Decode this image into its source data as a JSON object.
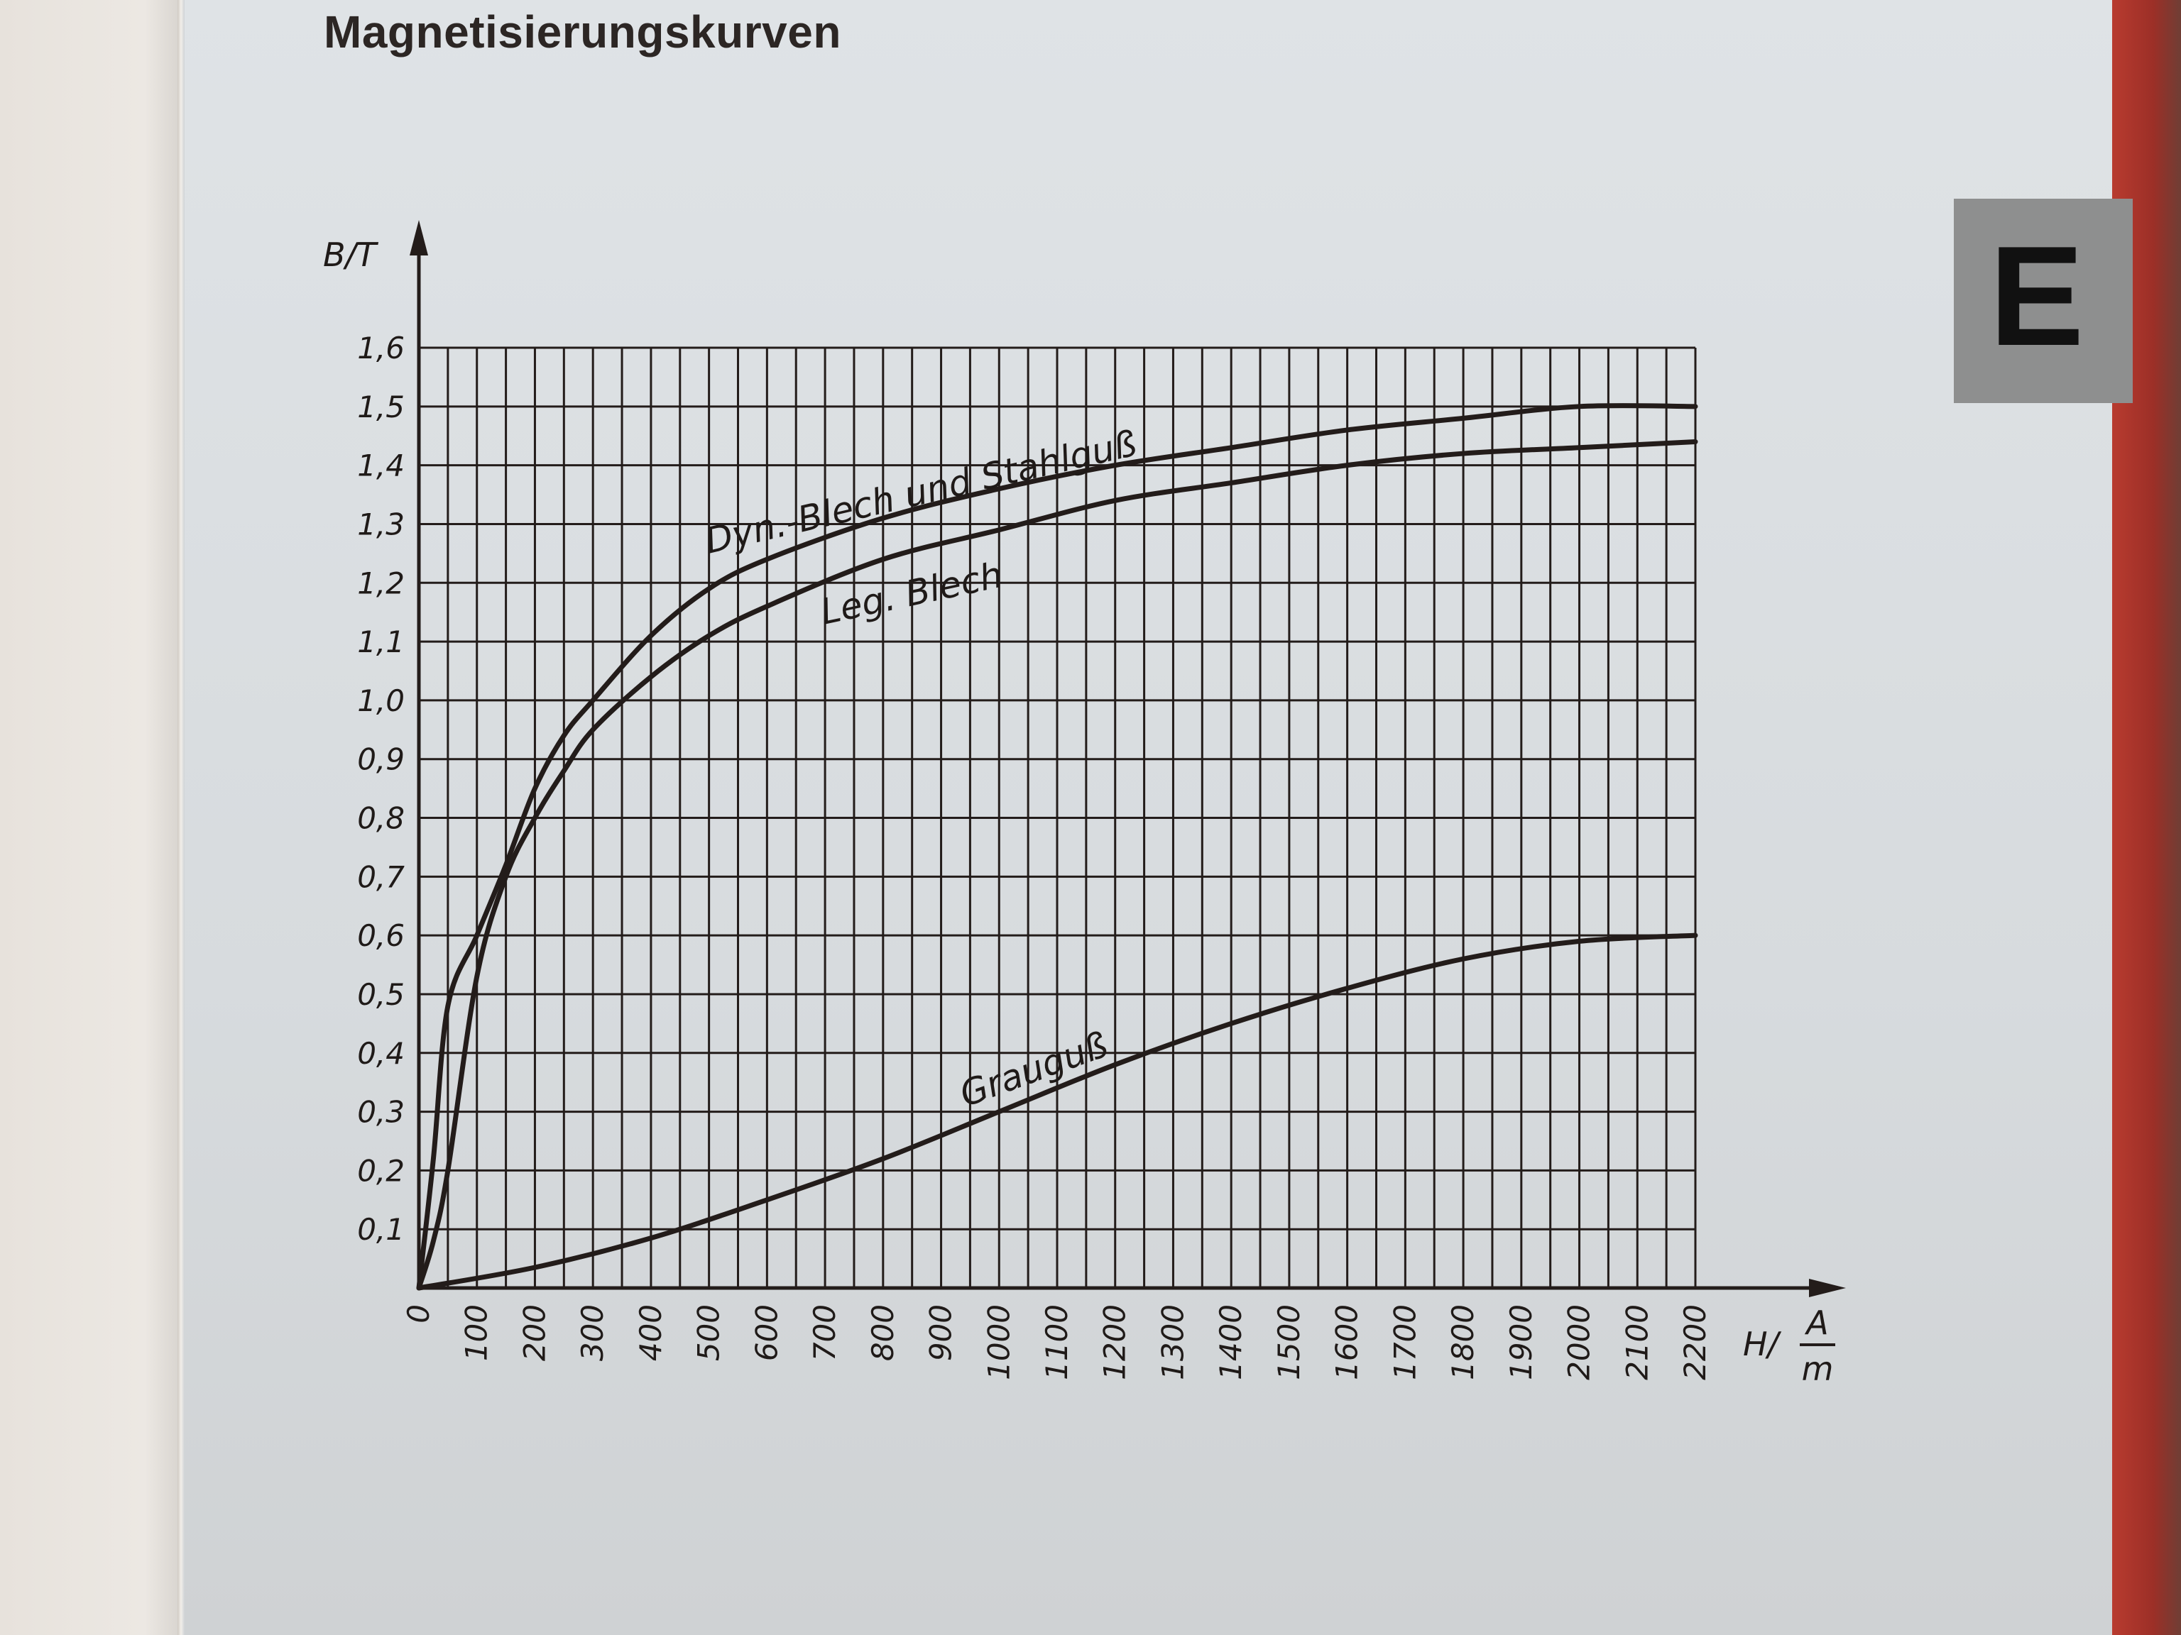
{
  "header": {
    "title": "Magnetisierungskurven",
    "section_tab": "E"
  },
  "chart_data": {
    "type": "line",
    "title": "Magnetisierungskurven",
    "ylabel": "B/T",
    "xlabel": "H/",
    "xunit_numerator": "A",
    "xunit_denominator": "m",
    "xlim": [
      0,
      2200
    ],
    "ylim": [
      0,
      1.6
    ],
    "grid": true,
    "x_ticks": [
      "0",
      "100",
      "200",
      "300",
      "400",
      "500",
      "600",
      "700",
      "800",
      "900",
      "1000",
      "1100",
      "1200",
      "1300",
      "1400",
      "1500",
      "1600",
      "1700",
      "1800",
      "1900",
      "2000",
      "2100",
      "2200"
    ],
    "y_ticks": [
      "0,1",
      "0,2",
      "0,3",
      "0,4",
      "0,5",
      "0,6",
      "0,7",
      "0,8",
      "0,9",
      "1,0",
      "1,1",
      "1,2",
      "1,3",
      "1,4",
      "1,5",
      "1,6"
    ],
    "series": [
      {
        "name": "Dyn.-Blech und Stahlguß",
        "x": [
          0,
          25,
          50,
          100,
          150,
          200,
          250,
          300,
          400,
          500,
          600,
          800,
          1000,
          1200,
          1400,
          1600,
          1800,
          2000,
          2200
        ],
        "y": [
          0,
          0.22,
          0.48,
          0.6,
          0.72,
          0.85,
          0.94,
          1.0,
          1.11,
          1.19,
          1.24,
          1.31,
          1.36,
          1.4,
          1.43,
          1.46,
          1.48,
          1.5,
          1.5
        ]
      },
      {
        "name": "Leg. Blech",
        "x": [
          0,
          25,
          50,
          100,
          150,
          200,
          250,
          300,
          400,
          500,
          600,
          800,
          1000,
          1200,
          1400,
          1600,
          1800,
          2000,
          2200
        ],
        "y": [
          0,
          0.08,
          0.2,
          0.53,
          0.7,
          0.8,
          0.88,
          0.95,
          1.04,
          1.11,
          1.16,
          1.24,
          1.29,
          1.34,
          1.37,
          1.4,
          1.42,
          1.43,
          1.44
        ]
      },
      {
        "name": "Grauguß",
        "x": [
          0,
          200,
          400,
          600,
          800,
          1000,
          1200,
          1400,
          1600,
          1800,
          2000,
          2200
        ],
        "y": [
          0,
          0.035,
          0.085,
          0.15,
          0.22,
          0.3,
          0.38,
          0.45,
          0.51,
          0.56,
          0.59,
          0.6
        ]
      }
    ]
  }
}
